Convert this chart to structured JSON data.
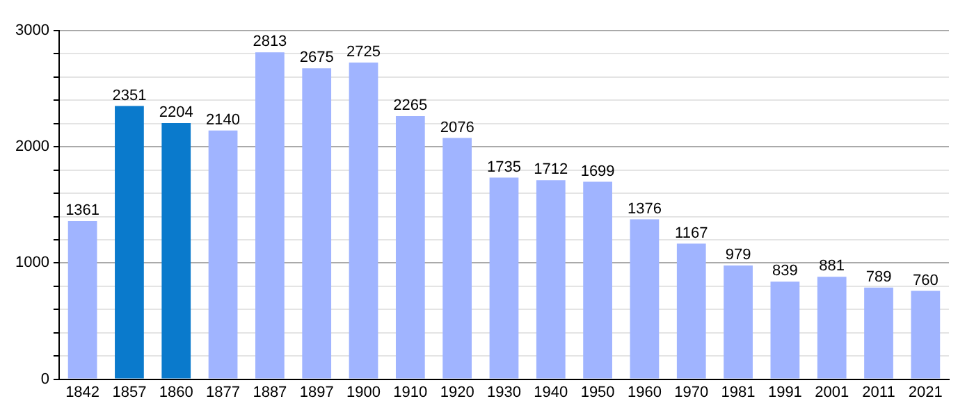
{
  "chart_data": {
    "type": "bar",
    "categories": [
      "1842",
      "1857",
      "1860",
      "1877",
      "1887",
      "1897",
      "1900",
      "1910",
      "1920",
      "1930",
      "1940",
      "1950",
      "1960",
      "1970",
      "1981",
      "1991",
      "2001",
      "2011",
      "2021"
    ],
    "values": [
      1361,
      2351,
      2204,
      2140,
      2813,
      2675,
      2725,
      2265,
      2076,
      1735,
      1712,
      1699,
      1376,
      1167,
      979,
      839,
      881,
      789,
      760
    ],
    "colors": [
      "#a0b4ff",
      "#0a7acc",
      "#0a7acc",
      "#a0b4ff",
      "#a0b4ff",
      "#a0b4ff",
      "#a0b4ff",
      "#a0b4ff",
      "#a0b4ff",
      "#a0b4ff",
      "#a0b4ff",
      "#a0b4ff",
      "#a0b4ff",
      "#a0b4ff",
      "#a0b4ff",
      "#a0b4ff",
      "#a0b4ff",
      "#a0b4ff",
      "#a0b4ff"
    ],
    "ylim": [
      0,
      3000
    ],
    "yticks": [
      0,
      {
        "value": 200,
        "label": null
      },
      {
        "value": 400,
        "label": null
      },
      {
        "value": 600,
        "label": null
      },
      {
        "value": 800,
        "label": null
      },
      1000,
      {
        "value": 1200,
        "label": null
      },
      {
        "value": 1400,
        "label": null
      },
      {
        "value": 1600,
        "label": null
      },
      {
        "value": 1800,
        "label": null
      },
      2000,
      {
        "value": 2200,
        "label": null
      },
      {
        "value": 2400,
        "label": null
      },
      {
        "value": 2600,
        "label": null
      },
      {
        "value": 2800,
        "label": null
      },
      3000
    ],
    "grid": "y",
    "data_labels": true,
    "legend": false
  }
}
